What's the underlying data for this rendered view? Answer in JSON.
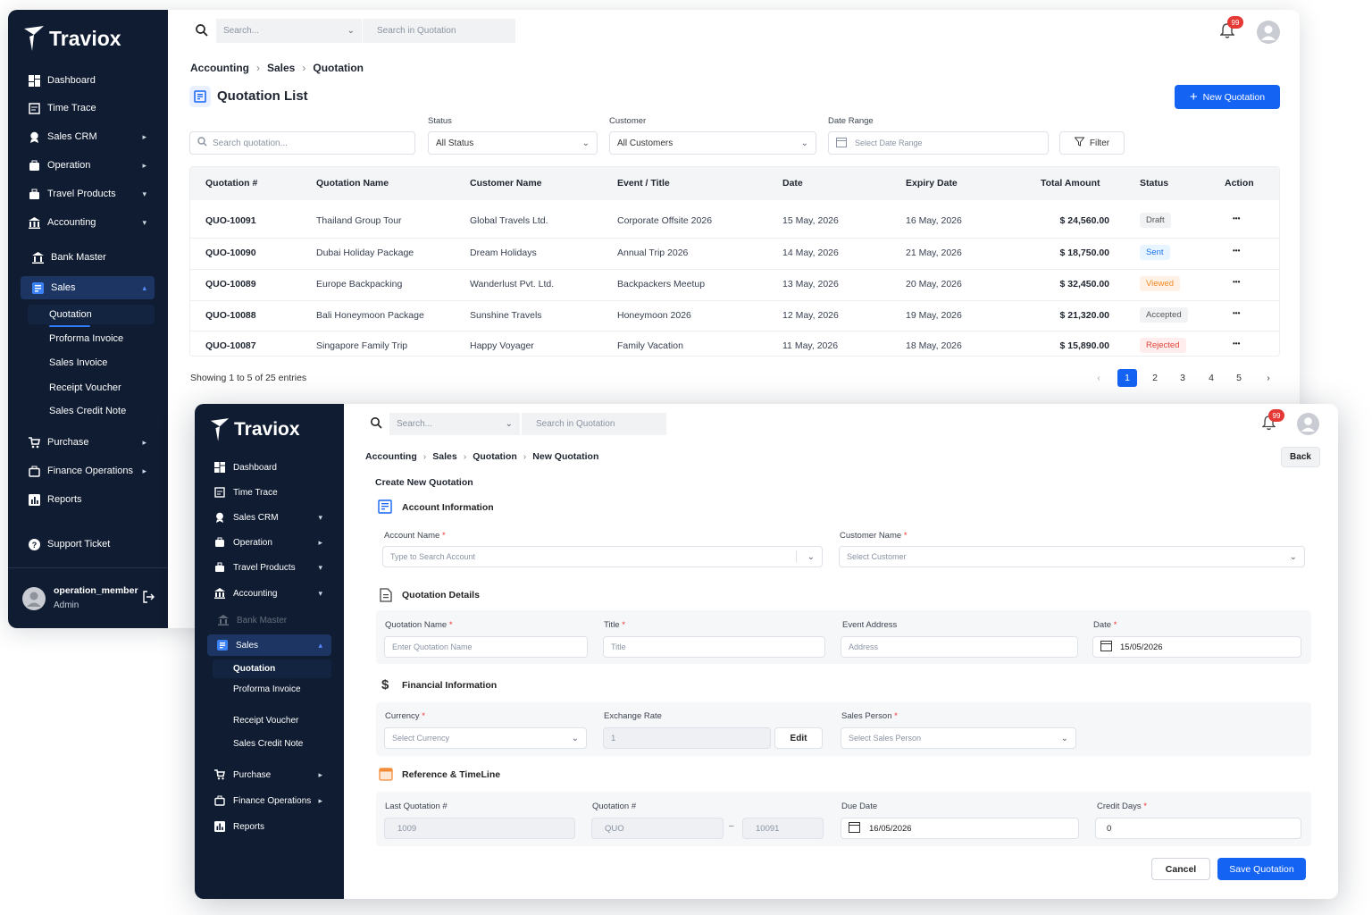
{
  "brand": "Traviox",
  "colors": {
    "sidebar": "#0f1c32",
    "primary": "#1463f3",
    "draft": "#f1f2f4",
    "sent": "#e8f4ff",
    "viewed": "#fff1e6",
    "accepted": "#f1f2f4",
    "rejected": "#ffeded",
    "badge": "#e53935"
  },
  "topbar": {
    "search_placeholder": "Search...",
    "search_scope": "Search in Quotation",
    "notif_count": "99"
  },
  "sidebar": {
    "items": [
      {
        "label": "Dashboard",
        "icon": "dashboard-icon"
      },
      {
        "label": "Time Trace",
        "icon": "calendar-icon"
      },
      {
        "label": "Sales CRM",
        "icon": "crm-icon"
      },
      {
        "label": "Operation",
        "icon": "operation-icon"
      },
      {
        "label": "Travel Products",
        "icon": "suitcase-icon"
      },
      {
        "label": "Accounting",
        "icon": "bank-icon"
      },
      {
        "label": "Bank Master",
        "icon": "bank-master-icon"
      },
      {
        "label": "Sales",
        "icon": "sales-icon"
      },
      {
        "label": "Purchase",
        "icon": "cart-icon"
      },
      {
        "label": "Finance Operations",
        "icon": "briefcase-icon"
      },
      {
        "label": "Reports",
        "icon": "reports-icon"
      },
      {
        "label": "Support Ticket",
        "icon": "help-icon"
      }
    ],
    "sales_sub": [
      "Quotation",
      "Proforma Invoice",
      "Sales Invoice",
      "Receipt Voucher",
      "Sales Credit Note"
    ],
    "user": {
      "name": "operation_member",
      "role": "Admin"
    }
  },
  "list": {
    "breadcrumb": [
      "Accounting",
      "Sales",
      "Quotation"
    ],
    "title": "Quotation List",
    "new_button": "New Quotation",
    "filters": {
      "search_placeholder": "Search quotation...",
      "status_label": "Status",
      "status_value": "All Status",
      "customer_label": "Customer",
      "customer_value": "All Customers",
      "date_label": "Date Range",
      "date_placeholder": "Select Date Range",
      "filter_button": "Filter"
    },
    "columns": [
      "Quotation #",
      "Quotation Name",
      "Customer Name",
      "Event / Title",
      "Date",
      "Expiry Date",
      "Total Amount",
      "Status",
      "Action"
    ],
    "rows": [
      {
        "id": "QUO-10091",
        "name": "Thailand Group Tour",
        "customer": "Global Travels Ltd.",
        "event": "Corporate Offsite 2026",
        "date": "15 May, 2026",
        "expiry": "16 May, 2026",
        "amount": "$ 24,560.00",
        "status": "Draft"
      },
      {
        "id": "QUO-10090",
        "name": "Dubai Holiday Package",
        "customer": "Dream Holidays",
        "event": "Annual Trip 2026",
        "date": "14 May, 2026",
        "expiry": "21 May, 2026",
        "amount": "$ 18,750.00",
        "status": "Sent"
      },
      {
        "id": "QUO-10089",
        "name": "Europe Backpacking",
        "customer": "Wanderlust Pvt. Ltd.",
        "event": "Backpackers Meetup",
        "date": "13 May, 2026",
        "expiry": "20 May, 2026",
        "amount": "$ 32,450.00",
        "status": "Viewed"
      },
      {
        "id": "QUO-10088",
        "name": "Bali Honeymoon Package",
        "customer": "Sunshine Travels",
        "event": "Honeymoon 2026",
        "date": "12 May, 2026",
        "expiry": "19 May, 2026",
        "amount": "$ 21,320.00",
        "status": "Accepted"
      },
      {
        "id": "QUO-10087",
        "name": "Singapore Family Trip",
        "customer": "Happy Voyager",
        "event": "Family Vacation",
        "date": "11 May, 2026",
        "expiry": "18 May, 2026",
        "amount": "$ 15,890.00",
        "status": "Rejected"
      }
    ],
    "action_glyph": "•••",
    "showing": "Showing 1 to 5 of 25 entries",
    "pages": [
      "1",
      "2",
      "3",
      "4",
      "5"
    ],
    "current_page": "1"
  },
  "form": {
    "breadcrumb": [
      "Accounting",
      "Sales",
      "Quotation",
      "New Quotation"
    ],
    "back_button": "Back",
    "heading": "Create New Quotation",
    "sections": {
      "account": "Account Information",
      "details": "Quotation Details",
      "financial": "Financial Information",
      "reference": "Reference & TimeLine"
    },
    "account_name_label": "Account Name",
    "account_name_placeholder": "Type to Search Account",
    "customer_name_label": "Customer Name",
    "customer_name_placeholder": "Select Customer",
    "qname_label": "Quotation Name",
    "qname_placeholder": "Enter Quotation Name",
    "title_label": "Title",
    "title_placeholder": "Title",
    "address_label": "Event Address",
    "address_placeholder": "Address",
    "date_label": "Date",
    "date_value": "15/05/2026",
    "currency_label": "Currency",
    "currency_placeholder": "Select Currency",
    "rate_label": "Exchange Rate",
    "rate_value": "1",
    "edit_button": "Edit",
    "person_label": "Sales Person",
    "person_placeholder": "Select Sales Person",
    "last_label": "Last Quotation #",
    "last_value": "1009",
    "qno_label": "Quotation #",
    "qno_prefix": "QUO",
    "qno_sep": "–",
    "qno_number": "10091",
    "due_label": "Due Date",
    "due_value": "16/05/2026",
    "credit_label": "Credit Days",
    "credit_value": "0",
    "cancel_button": "Cancel",
    "save_button": "Save Quotation",
    "required_mark": "*"
  }
}
